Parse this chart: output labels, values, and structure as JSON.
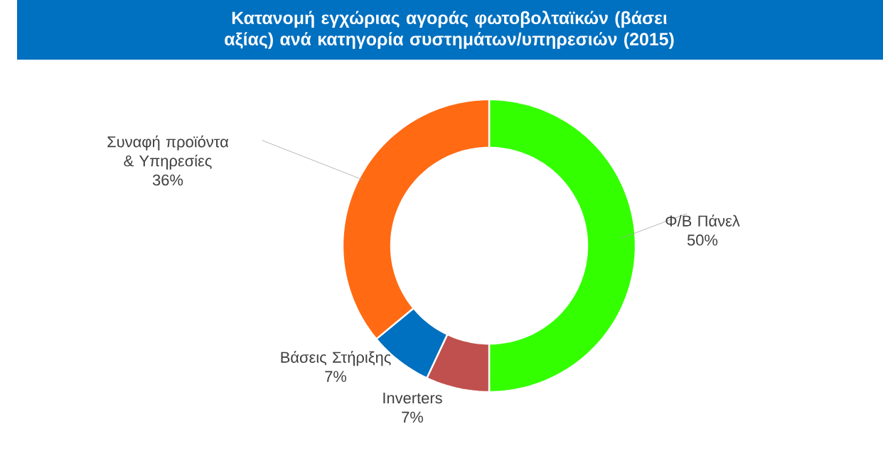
{
  "chart_data": {
    "type": "donut",
    "title": "Κατανομή εγχώριας αγοράς φωτοβολταϊκών (βάσει αξίας) ανά κατηγορία συστημάτων/υπηρεσιών (2015)",
    "categories": [
      "Φ/Β Πάνελ",
      "Inverters",
      "Βάσεις Στήριξης",
      "Συναφή προϊόντα & Υπηρεσίες"
    ],
    "values": [
      50,
      7,
      7,
      36
    ],
    "value_labels": [
      "50%",
      "7%",
      "7%",
      "36%"
    ],
    "colors": [
      "#33ff00",
      "#c0504d",
      "#0070c0",
      "#ff6a13"
    ]
  }
}
